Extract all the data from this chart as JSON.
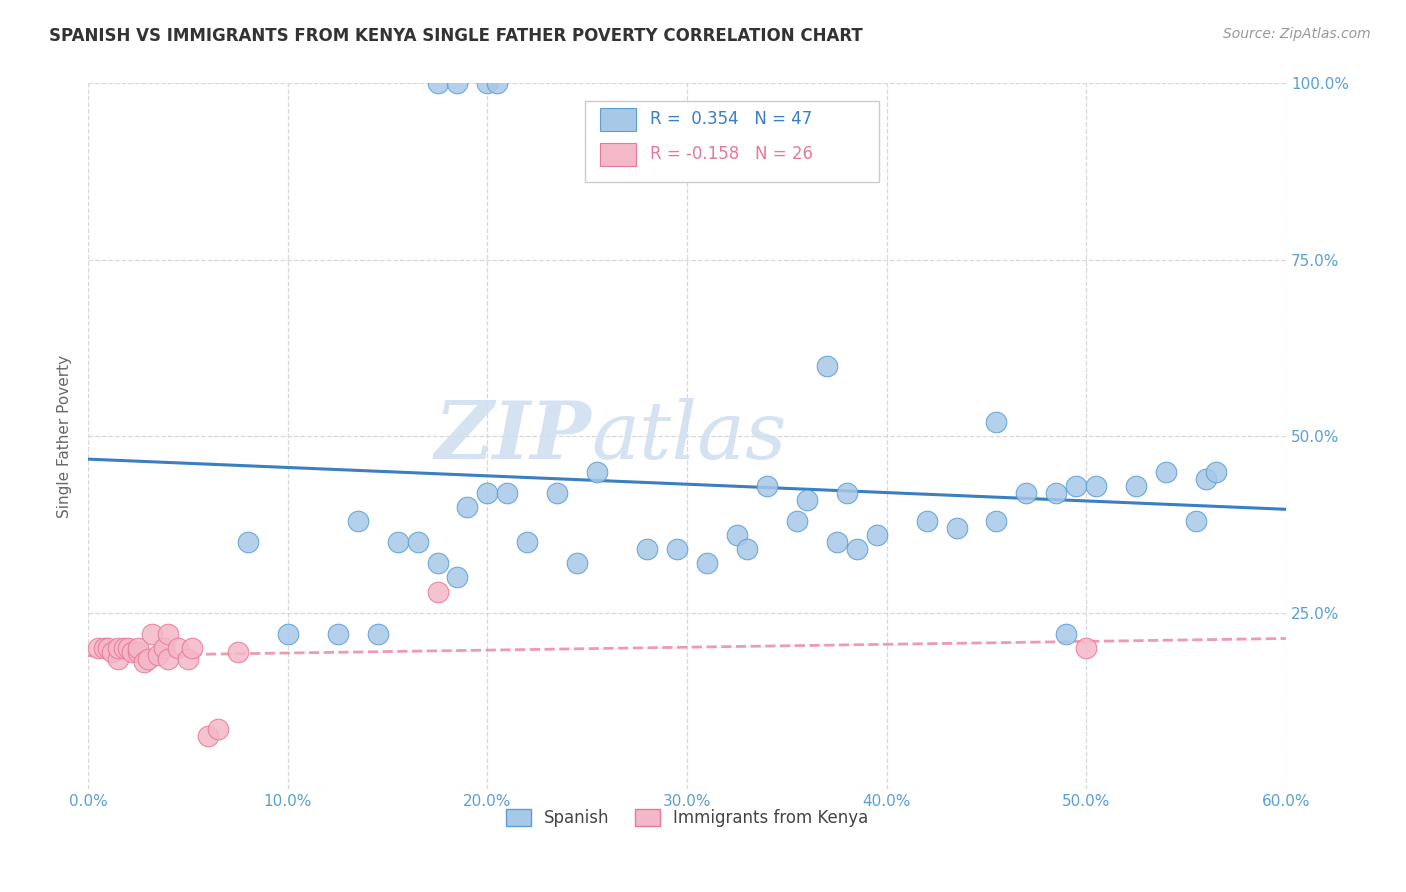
{
  "title": "SPANISH VS IMMIGRANTS FROM KENYA SINGLE FATHER POVERTY CORRELATION CHART",
  "source": "Source: ZipAtlas.com",
  "xlim": [
    0.0,
    0.6
  ],
  "ylim": [
    0.0,
    1.0
  ],
  "ylabel": "Single Father Poverty",
  "legend_labels": [
    "Spanish",
    "Immigrants from Kenya"
  ],
  "r_spanish": 0.354,
  "n_spanish": 47,
  "r_kenya": -0.158,
  "n_kenya": 26,
  "blue_color": "#a8c8e8",
  "blue_edge": "#5a9fd4",
  "pink_color": "#f4b8c8",
  "pink_edge": "#e87898",
  "blue_line_color": "#3a7fc1",
  "pink_line_color": "#e87898",
  "watermark": "ZIPatlas",
  "watermark_color": "#d0dff0",
  "grid_color": "#d8d8d8",
  "tick_color": "#5a9fd4",
  "title_color": "#333333",
  "source_color": "#999999",
  "ylabel_color": "#666666",
  "spanish_x": [
    0.175,
    0.185,
    0.2,
    0.205,
    0.08,
    0.1,
    0.125,
    0.135,
    0.145,
    0.155,
    0.165,
    0.175,
    0.185,
    0.19,
    0.2,
    0.21,
    0.22,
    0.235,
    0.245,
    0.255,
    0.28,
    0.295,
    0.31,
    0.325,
    0.33,
    0.34,
    0.355,
    0.36,
    0.375,
    0.385,
    0.38,
    0.395,
    0.42,
    0.435,
    0.455,
    0.47,
    0.485,
    0.495,
    0.505,
    0.37,
    0.455,
    0.49,
    0.525,
    0.54,
    0.555,
    0.56,
    0.565
  ],
  "spanish_y": [
    1.0,
    1.0,
    1.0,
    1.0,
    0.35,
    0.22,
    0.22,
    0.38,
    0.22,
    0.35,
    0.35,
    0.32,
    0.3,
    0.4,
    0.42,
    0.42,
    0.35,
    0.42,
    0.32,
    0.45,
    0.34,
    0.34,
    0.32,
    0.36,
    0.34,
    0.43,
    0.38,
    0.41,
    0.35,
    0.34,
    0.42,
    0.36,
    0.38,
    0.37,
    0.38,
    0.42,
    0.42,
    0.43,
    0.43,
    0.6,
    0.52,
    0.22,
    0.43,
    0.45,
    0.38,
    0.44,
    0.45
  ],
  "kenya_x": [
    0.005,
    0.008,
    0.01,
    0.012,
    0.015,
    0.015,
    0.018,
    0.02,
    0.022,
    0.025,
    0.025,
    0.028,
    0.03,
    0.032,
    0.035,
    0.038,
    0.04,
    0.04,
    0.045,
    0.05,
    0.052,
    0.06,
    0.065,
    0.075,
    0.175,
    0.5
  ],
  "kenya_y": [
    0.2,
    0.2,
    0.2,
    0.195,
    0.185,
    0.2,
    0.2,
    0.2,
    0.195,
    0.195,
    0.2,
    0.18,
    0.185,
    0.22,
    0.19,
    0.2,
    0.185,
    0.22,
    0.2,
    0.185,
    0.2,
    0.075,
    0.085,
    0.195,
    0.28,
    0.2
  ]
}
